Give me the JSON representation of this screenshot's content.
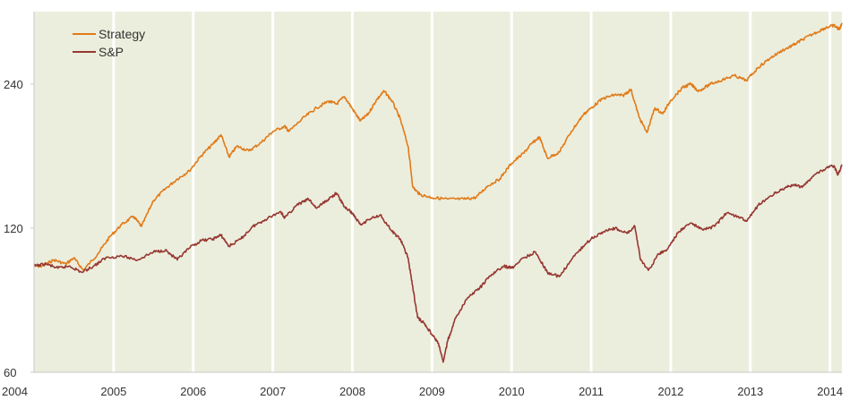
{
  "chart_data": {
    "type": "line",
    "title": "",
    "xlabel": "",
    "ylabel": "",
    "y_scale": "log",
    "xlim": [
      2004.0,
      2014.15
    ],
    "ylim": [
      60,
      340
    ],
    "grid": "vertical lines at years",
    "legend_position": "top-left",
    "x_ticks": [
      "2004",
      "2005",
      "2006",
      "2007",
      "2008",
      "2009",
      "2010",
      "2011",
      "2012",
      "2013",
      "2014"
    ],
    "y_ticks": [
      "60",
      "120",
      "240"
    ],
    "colors": {
      "background": "#eceedd",
      "gridline": "#ffffff",
      "axis": "#c8c8c8"
    },
    "series": [
      {
        "name": "Strategy",
        "color": "#e07b1a",
        "points": [
          [
            2004.0,
            100
          ],
          [
            2004.1,
            100
          ],
          [
            2004.25,
            103
          ],
          [
            2004.4,
            101
          ],
          [
            2004.5,
            104
          ],
          [
            2004.62,
            98
          ],
          [
            2004.8,
            106
          ],
          [
            2004.95,
            115
          ],
          [
            2005.1,
            122
          ],
          [
            2005.25,
            127
          ],
          [
            2005.35,
            121
          ],
          [
            2005.5,
            137
          ],
          [
            2005.65,
            145
          ],
          [
            2005.8,
            152
          ],
          [
            2005.95,
            158
          ],
          [
            2006.1,
            170
          ],
          [
            2006.25,
            180
          ],
          [
            2006.35,
            188
          ],
          [
            2006.45,
            169
          ],
          [
            2006.55,
            178
          ],
          [
            2006.7,
            174
          ],
          [
            2006.85,
            181
          ],
          [
            2007.0,
            191
          ],
          [
            2007.15,
            196
          ],
          [
            2007.2,
            191
          ],
          [
            2007.4,
            205
          ],
          [
            2007.55,
            214
          ],
          [
            2007.7,
            221
          ],
          [
            2007.8,
            218
          ],
          [
            2007.9,
            226
          ],
          [
            2008.0,
            213
          ],
          [
            2008.1,
            201
          ],
          [
            2008.2,
            208
          ],
          [
            2008.3,
            222
          ],
          [
            2008.4,
            232
          ],
          [
            2008.5,
            221
          ],
          [
            2008.6,
            203
          ],
          [
            2008.7,
            178
          ],
          [
            2008.76,
            146
          ],
          [
            2008.85,
            141
          ],
          [
            2009.0,
            139
          ],
          [
            2009.2,
            138
          ],
          [
            2009.4,
            138
          ],
          [
            2009.55,
            139
          ],
          [
            2009.7,
            147
          ],
          [
            2009.85,
            152
          ],
          [
            2010.0,
            164
          ],
          [
            2010.15,
            172
          ],
          [
            2010.25,
            180
          ],
          [
            2010.35,
            186
          ],
          [
            2010.45,
            168
          ],
          [
            2010.6,
            173
          ],
          [
            2010.75,
            191
          ],
          [
            2010.9,
            207
          ],
          [
            2011.0,
            214
          ],
          [
            2011.15,
            224
          ],
          [
            2011.3,
            228
          ],
          [
            2011.4,
            227
          ],
          [
            2011.5,
            234
          ],
          [
            2011.6,
            205
          ],
          [
            2011.7,
            190
          ],
          [
            2011.8,
            214
          ],
          [
            2011.9,
            208
          ],
          [
            2012.0,
            222
          ],
          [
            2012.15,
            236
          ],
          [
            2012.25,
            240
          ],
          [
            2012.35,
            232
          ],
          [
            2012.5,
            240
          ],
          [
            2012.65,
            245
          ],
          [
            2012.8,
            250
          ],
          [
            2012.95,
            244
          ],
          [
            2013.1,
            260
          ],
          [
            2013.25,
            272
          ],
          [
            2013.4,
            282
          ],
          [
            2013.55,
            290
          ],
          [
            2013.65,
            297
          ],
          [
            2013.8,
            306
          ],
          [
            2013.95,
            315
          ],
          [
            2014.05,
            318
          ],
          [
            2014.12,
            312
          ],
          [
            2014.15,
            322
          ]
        ]
      },
      {
        "name": "S&P",
        "color": "#963732",
        "points": [
          [
            2004.0,
            100
          ],
          [
            2004.15,
            101
          ],
          [
            2004.3,
            99
          ],
          [
            2004.45,
            100
          ],
          [
            2004.6,
            97
          ],
          [
            2004.75,
            100
          ],
          [
            2004.9,
            104
          ],
          [
            2005.1,
            105
          ],
          [
            2005.3,
            103
          ],
          [
            2005.5,
            107
          ],
          [
            2005.65,
            108
          ],
          [
            2005.8,
            103
          ],
          [
            2005.95,
            109
          ],
          [
            2006.1,
            113
          ],
          [
            2006.25,
            114
          ],
          [
            2006.35,
            116
          ],
          [
            2006.45,
            110
          ],
          [
            2006.6,
            114
          ],
          [
            2006.75,
            121
          ],
          [
            2006.9,
            125
          ],
          [
            2007.1,
            130
          ],
          [
            2007.15,
            126
          ],
          [
            2007.3,
            134
          ],
          [
            2007.45,
            138
          ],
          [
            2007.55,
            132
          ],
          [
            2007.7,
            138
          ],
          [
            2007.8,
            142
          ],
          [
            2007.9,
            133
          ],
          [
            2008.0,
            129
          ],
          [
            2008.1,
            122
          ],
          [
            2008.2,
            125
          ],
          [
            2008.35,
            128
          ],
          [
            2008.5,
            118
          ],
          [
            2008.6,
            114
          ],
          [
            2008.7,
            104
          ],
          [
            2008.76,
            90
          ],
          [
            2008.82,
            78
          ],
          [
            2008.9,
            76
          ],
          [
            2009.0,
            72
          ],
          [
            2009.08,
            69
          ],
          [
            2009.14,
            63
          ],
          [
            2009.2,
            70
          ],
          [
            2009.3,
            78
          ],
          [
            2009.45,
            86
          ],
          [
            2009.6,
            90
          ],
          [
            2009.75,
            96
          ],
          [
            2009.9,
            100
          ],
          [
            2010.0,
            99
          ],
          [
            2010.15,
            104
          ],
          [
            2010.3,
            107
          ],
          [
            2010.45,
            97
          ],
          [
            2010.6,
            95
          ],
          [
            2010.75,
            103
          ],
          [
            2010.9,
            110
          ],
          [
            2011.0,
            114
          ],
          [
            2011.15,
            118
          ],
          [
            2011.3,
            120
          ],
          [
            2011.45,
            117
          ],
          [
            2011.55,
            121
          ],
          [
            2011.62,
            103
          ],
          [
            2011.72,
            98
          ],
          [
            2011.85,
            106
          ],
          [
            2011.95,
            108
          ],
          [
            2012.1,
            118
          ],
          [
            2012.25,
            123
          ],
          [
            2012.4,
            119
          ],
          [
            2012.55,
            121
          ],
          [
            2012.7,
            129
          ],
          [
            2012.85,
            127
          ],
          [
            2012.95,
            124
          ],
          [
            2013.1,
            134
          ],
          [
            2013.25,
            140
          ],
          [
            2013.4,
            145
          ],
          [
            2013.55,
            148
          ],
          [
            2013.65,
            146
          ],
          [
            2013.8,
            155
          ],
          [
            2013.95,
            160
          ],
          [
            2014.05,
            162
          ],
          [
            2014.1,
            155
          ],
          [
            2014.15,
            163
          ]
        ]
      }
    ]
  }
}
